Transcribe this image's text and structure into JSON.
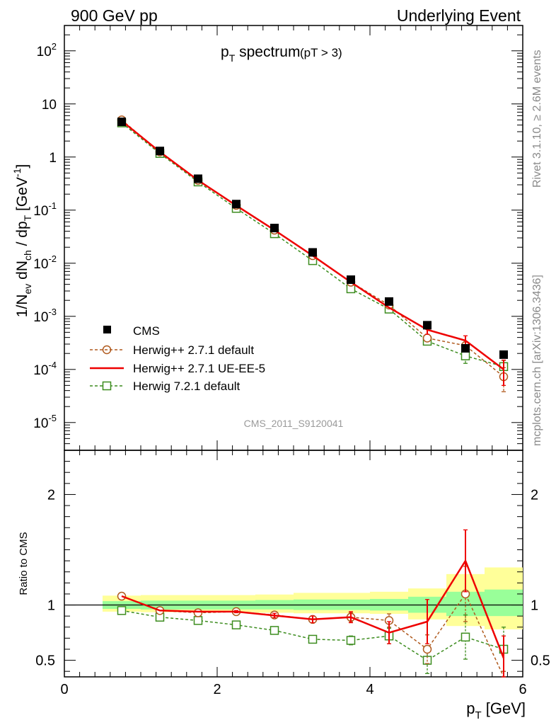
{
  "header": {
    "left": "900 GeV pp",
    "right": "Underlying Event"
  },
  "title": {
    "main": "p",
    "main_sub": "T",
    "main_rest": " spectrum",
    "cut": "(pT >  3)"
  },
  "side_text": {
    "rivet": "Rivet 3.1.10, ≥ 2.6M events",
    "mcplots": "mcplots.cern.ch [arXiv:1306.3436]"
  },
  "watermark": "CMS_2011_S9120041",
  "ratio_ylabel": "Ratio to CMS",
  "xlabel": {
    "main": "p",
    "sub": "T",
    "rest": " [GeV]"
  },
  "colors": {
    "cms": "#000000",
    "herwigpp_default": "#b05a1e",
    "herwigpp_ueee5": "#ee0000",
    "herwig721": "#3c8c1e",
    "band_inner": "#99ff99",
    "band_outer": "#ffff99"
  },
  "legend": [
    {
      "key": "cms",
      "label": "CMS"
    },
    {
      "key": "herwigpp_default",
      "label": "Herwig++ 2.7.1 default"
    },
    {
      "key": "herwigpp_ueee5",
      "label": "Herwig++ 2.7.1 UE-EE-5"
    },
    {
      "key": "herwig721",
      "label": "Herwig 7.2.1 default"
    }
  ],
  "chart_data": [
    {
      "type": "scatter",
      "panel": "main",
      "log_y": true,
      "xlim": [
        0,
        6
      ],
      "ylim": [
        3e-06,
        300
      ],
      "ylabel": "1/N_ev dN_ch / dp_T [GeV^-1]",
      "y_tick_labels": [
        "10^-5",
        "10^-4",
        "10^-3",
        "10^-2",
        "10^-1",
        "1",
        "10",
        "10^2"
      ],
      "x": [
        0.75,
        1.25,
        1.75,
        2.25,
        2.75,
        3.25,
        3.75,
        4.25,
        4.75,
        5.25,
        5.75
      ],
      "series": [
        {
          "name": "CMS",
          "key": "cms",
          "values": [
            4.6,
            1.3,
            0.39,
            0.13,
            0.046,
            0.016,
            0.0049,
            0.0019,
            0.00068,
            0.00025,
            0.00019
          ]
        },
        {
          "name": "Herwig++ 2.7.1 default",
          "key": "herwigpp_default",
          "values": [
            5.0,
            1.25,
            0.365,
            0.123,
            0.042,
            0.0139,
            0.0044,
            0.00163,
            0.00039,
            0.00028,
            7.3e-05
          ],
          "errors": [
            0,
            0,
            0,
            0,
            0,
            0,
            0,
            0,
            5e-05,
            5e-05,
            3.5e-05
          ]
        },
        {
          "name": "Herwig++ 2.7.1 UE-EE-5",
          "key": "herwigpp_ueee5",
          "values": [
            4.8,
            1.25,
            0.365,
            0.122,
            0.042,
            0.0139,
            0.0044,
            0.00146,
            0.00056,
            0.00035,
            0.0001
          ],
          "errors": [
            0,
            0,
            0,
            0,
            0,
            0,
            0,
            0,
            0.0001,
            8e-05,
            5e-05
          ]
        },
        {
          "name": "Herwig 7.2.1 default",
          "key": "herwig721",
          "values": [
            4.4,
            1.17,
            0.34,
            0.108,
            0.036,
            0.0112,
            0.0033,
            0.00137,
            0.00034,
            0.00018,
            0.000113
          ],
          "errors": [
            0,
            0,
            0,
            0,
            0,
            0,
            0,
            0,
            5e-05,
            5e-05,
            3.5e-05
          ]
        }
      ]
    },
    {
      "type": "scatter",
      "panel": "ratio",
      "xlim": [
        0,
        6
      ],
      "ylim": [
        0.35,
        2.4
      ],
      "x_ticks": [
        0,
        2,
        4,
        6
      ],
      "y_ticks": [
        0.5,
        1,
        2
      ],
      "ylabel": "Ratio to CMS",
      "xlabel": "p_T [GeV]",
      "bins": [
        {
          "lo": 0.5,
          "hi": 1.0,
          "inner": [
            0.965,
            1.035
          ],
          "outer": [
            0.94,
            1.085
          ]
        },
        {
          "lo": 1.0,
          "hi": 1.5,
          "inner": [
            0.96,
            1.04
          ],
          "outer": [
            0.935,
            1.09
          ]
        },
        {
          "lo": 1.5,
          "hi": 2.0,
          "inner": [
            0.96,
            1.04
          ],
          "outer": [
            0.935,
            1.09
          ]
        },
        {
          "lo": 2.0,
          "hi": 2.5,
          "inner": [
            0.96,
            1.04
          ],
          "outer": [
            0.935,
            1.09
          ]
        },
        {
          "lo": 2.5,
          "hi": 3.0,
          "inner": [
            0.96,
            1.045
          ],
          "outer": [
            0.93,
            1.095
          ]
        },
        {
          "lo": 3.0,
          "hi": 3.5,
          "inner": [
            0.955,
            1.05
          ],
          "outer": [
            0.925,
            1.11
          ]
        },
        {
          "lo": 3.5,
          "hi": 4.0,
          "inner": [
            0.955,
            1.05
          ],
          "outer": [
            0.925,
            1.11
          ]
        },
        {
          "lo": 4.0,
          "hi": 4.5,
          "inner": [
            0.95,
            1.055
          ],
          "outer": [
            0.92,
            1.12
          ]
        },
        {
          "lo": 4.5,
          "hi": 5.0,
          "inner": [
            0.93,
            1.075
          ],
          "outer": [
            0.87,
            1.15
          ]
        },
        {
          "lo": 5.0,
          "hi": 5.5,
          "inner": [
            0.9,
            1.12
          ],
          "outer": [
            0.81,
            1.28
          ]
        },
        {
          "lo": 5.5,
          "hi": 6.0,
          "inner": [
            0.9,
            1.14
          ],
          "outer": [
            0.78,
            1.34
          ]
        }
      ],
      "x": [
        0.75,
        1.25,
        1.75,
        2.25,
        2.75,
        3.25,
        3.75,
        4.25,
        4.75,
        5.25,
        5.75
      ],
      "series": [
        {
          "name": "Herwig++ 2.7.1 default",
          "key": "herwigpp_default",
          "values": [
            1.08,
            0.95,
            0.93,
            0.94,
            0.91,
            0.87,
            0.89,
            0.86,
            0.6,
            1.1,
            0.3
          ],
          "errors": [
            0,
            0,
            0,
            0,
            0,
            0.03,
            0.04,
            0.06,
            0.13,
            0.25,
            0.1
          ]
        },
        {
          "name": "Herwig++ 2.7.1 UE-EE-5",
          "key": "herwigpp_ueee5",
          "values": [
            1.08,
            0.95,
            0.94,
            0.94,
            0.905,
            0.87,
            0.89,
            0.75,
            0.85,
            1.4,
            0.52
          ],
          "errors": [
            0,
            0,
            0,
            0.01,
            0.02,
            0.03,
            0.05,
            0.1,
            0.2,
            0.28,
            0.2
          ]
        },
        {
          "name": "Herwig 7.2.1 default",
          "key": "herwig721",
          "values": [
            0.95,
            0.89,
            0.86,
            0.82,
            0.77,
            0.69,
            0.68,
            0.72,
            0.5,
            0.71,
            0.6
          ],
          "errors": [
            0,
            0,
            0,
            0,
            0,
            0.02,
            0.04,
            0.07,
            0.12,
            0.2,
            0.2
          ]
        }
      ]
    }
  ]
}
